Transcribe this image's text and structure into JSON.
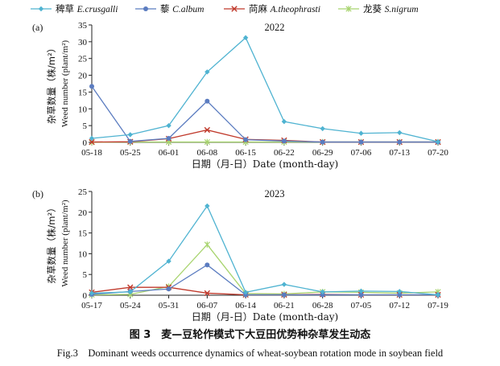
{
  "legend": [
    {
      "cn": "稗草",
      "sci": "E.crusgalli",
      "color": "#4fb3d1",
      "marker": "diamond"
    },
    {
      "cn": "藜",
      "sci": "C.album",
      "color": "#5b7cc0",
      "marker": "circle"
    },
    {
      "cn": "苘麻",
      "sci": "A.theophrasti",
      "color": "#c0392b",
      "marker": "cross"
    },
    {
      "cn": "龙葵",
      "sci": "S.nigrum",
      "color": "#a8d46f",
      "marker": "star"
    }
  ],
  "chart_data": [
    {
      "type": "line",
      "panel": "(a)",
      "title": "2022",
      "xlabel": "日期（月-日）Date (month-day)",
      "ylabel_cn": "杂草数量（株/m²）",
      "ylabel_en": "Weed number (plant/m²)",
      "ylim": [
        0,
        35
      ],
      "yticks": [
        0,
        5,
        10,
        15,
        20,
        25,
        30,
        35
      ],
      "x": [
        "05-18",
        "05-25",
        "06-01",
        "06-08",
        "06-15",
        "06-22",
        "06-29",
        "07-06",
        "07-13",
        "07-20"
      ],
      "series": [
        {
          "name": "稗草 E.crusgalli",
          "values": [
            1.2,
            2.3,
            5.0,
            21.0,
            31.2,
            6.2,
            4.1,
            2.7,
            2.9,
            0.2
          ]
        },
        {
          "name": "藜 C.album",
          "values": [
            16.7,
            0.3,
            1.2,
            12.3,
            0.8,
            0.4,
            0.1,
            0.1,
            0.1,
            0.1
          ]
        },
        {
          "name": "苘麻 A.theophrasti",
          "values": [
            0.1,
            0.2,
            1.1,
            3.7,
            0.9,
            0.6,
            0.1,
            0.1,
            0.1,
            0.1
          ]
        },
        {
          "name": "龙葵 S.nigrum",
          "values": [
            0.0,
            0.1,
            0.1,
            0.1,
            0.1,
            0.1,
            0.1,
            0.1,
            0.1,
            0.1
          ]
        }
      ]
    },
    {
      "type": "line",
      "panel": "(b)",
      "title": "2023",
      "xlabel": "日期（月-日）Date (month-day)",
      "ylabel_cn": "杂草数量（株/m²）",
      "ylabel_en": "Weed number (plant/m²)",
      "ylim": [
        0,
        25
      ],
      "yticks": [
        0,
        5,
        10,
        15,
        20,
        25
      ],
      "x": [
        "05-17",
        "05-24",
        "05-31",
        "06-07",
        "06-14",
        "06-21",
        "06-28",
        "07-05",
        "07-12",
        "07-19"
      ],
      "series": [
        {
          "name": "稗草 E.crusgalli",
          "values": [
            0.5,
            0.8,
            8.2,
            21.5,
            0.7,
            2.6,
            0.8,
            1.0,
            0.9,
            0.1
          ]
        },
        {
          "name": "藜 C.album",
          "values": [
            0.2,
            0.9,
            1.5,
            7.3,
            0.1,
            0.1,
            0.1,
            0.1,
            0.1,
            0.1
          ]
        },
        {
          "name": "苘麻 A.theophrasti",
          "values": [
            0.7,
            1.9,
            1.9,
            0.5,
            0.1,
            0.1,
            0.2,
            0.1,
            0.1,
            0.1
          ]
        },
        {
          "name": "龙葵 S.nigrum",
          "values": [
            0.1,
            0.2,
            2.1,
            12.2,
            0.4,
            0.3,
            0.8,
            0.7,
            0.5,
            0.8
          ]
        }
      ]
    }
  ],
  "caption_zh": "图 3　麦—豆轮作模式下大豆田优势种杂草发生动态",
  "caption_en": "Fig.3　Dominant weeds occurrence dynamics of wheat-soybean rotation mode in soybean field"
}
